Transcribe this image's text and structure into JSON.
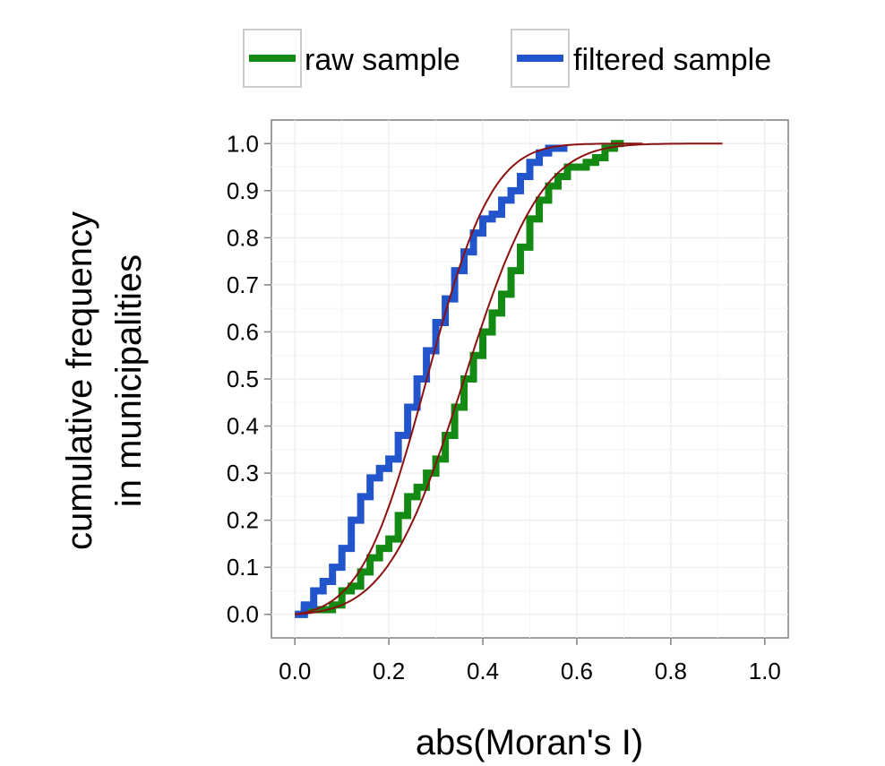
{
  "chart_data": {
    "type": "line",
    "title": "",
    "xlabel": "abs(Moran's I)",
    "ylabel_lines": [
      "cumulative frequency",
      "in municipalities"
    ],
    "xlim": [
      -0.05,
      1.05
    ],
    "ylim": [
      -0.05,
      1.05
    ],
    "x_ticks": [
      "0.0",
      "0.2",
      "0.4",
      "0.6",
      "0.8",
      "1.0"
    ],
    "y_ticks": [
      "0.0",
      "0.1",
      "0.2",
      "0.3",
      "0.4",
      "0.5",
      "0.6",
      "0.7",
      "0.8",
      "0.9",
      "1.0"
    ],
    "grid": true,
    "legend_position": "top",
    "series": [
      {
        "name": "raw sample",
        "color": "#138a13",
        "style": "step",
        "x": [
          0.0,
          0.02,
          0.05,
          0.08,
          0.1,
          0.12,
          0.14,
          0.16,
          0.18,
          0.2,
          0.22,
          0.24,
          0.26,
          0.28,
          0.3,
          0.32,
          0.34,
          0.36,
          0.38,
          0.4,
          0.42,
          0.44,
          0.46,
          0.48,
          0.5,
          0.52,
          0.54,
          0.56,
          0.58,
          0.6,
          0.62,
          0.64,
          0.66,
          0.68,
          0.7
        ],
        "y": [
          0.0,
          0.01,
          0.01,
          0.02,
          0.05,
          0.06,
          0.09,
          0.12,
          0.14,
          0.16,
          0.21,
          0.25,
          0.27,
          0.3,
          0.33,
          0.38,
          0.44,
          0.5,
          0.55,
          0.6,
          0.64,
          0.68,
          0.73,
          0.78,
          0.84,
          0.88,
          0.91,
          0.93,
          0.95,
          0.95,
          0.96,
          0.97,
          0.99,
          1.0,
          1.0
        ]
      },
      {
        "name": "filtered sample",
        "color": "#2255cc",
        "style": "step",
        "x": [
          0.0,
          0.02,
          0.04,
          0.06,
          0.08,
          0.1,
          0.12,
          0.14,
          0.16,
          0.18,
          0.2,
          0.22,
          0.24,
          0.26,
          0.28,
          0.3,
          0.32,
          0.34,
          0.36,
          0.38,
          0.4,
          0.42,
          0.44,
          0.46,
          0.48,
          0.5,
          0.52,
          0.54,
          0.56,
          0.58
        ],
        "y": [
          0.0,
          0.02,
          0.05,
          0.07,
          0.1,
          0.14,
          0.2,
          0.25,
          0.29,
          0.31,
          0.33,
          0.38,
          0.44,
          0.5,
          0.56,
          0.62,
          0.67,
          0.73,
          0.77,
          0.81,
          0.84,
          0.85,
          0.88,
          0.9,
          0.93,
          0.96,
          0.98,
          0.99,
          0.99,
          0.99
        ]
      }
    ],
    "fit_lines": {
      "color": "#8b1010",
      "curves": [
        {
          "mean": 0.28,
          "sd": 0.11,
          "x_range": [
            0.0,
            0.74
          ]
        },
        {
          "mean": 0.36,
          "sd": 0.13,
          "x_range": [
            0.0,
            0.91
          ]
        }
      ]
    }
  }
}
